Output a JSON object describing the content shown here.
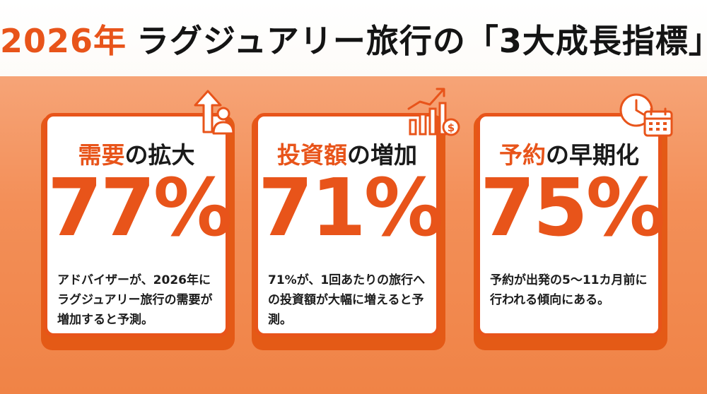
{
  "title": {
    "year": "2026年",
    "text": "ラグジュアリー旅行の「3大成長指標」"
  },
  "cards": [
    {
      "heading_accent": "需要",
      "heading_rest": "の拡大",
      "value": "77%",
      "description": "アドバイザーが、2026年にラグジュアリー旅行の需要が増加すると予測。",
      "icon": "arrow-up-person-icon"
    },
    {
      "heading_accent": "投資額",
      "heading_rest": "の増加",
      "value": "71%",
      "description": "71%が、1回あたりの旅行への投資額が大幅に増えると予測。",
      "icon": "bar-chart-dollar-icon"
    },
    {
      "heading_accent": "予約",
      "heading_rest": "の早期化",
      "value": "75%",
      "description": "予約が出発の5～11カ月前に行われる傾向にある。",
      "icon": "clock-calendar-icon"
    }
  ],
  "colors": {
    "accent": "#e8541a",
    "text": "#141414",
    "background_top": "#f6a477",
    "background_bottom": "#f08346"
  }
}
